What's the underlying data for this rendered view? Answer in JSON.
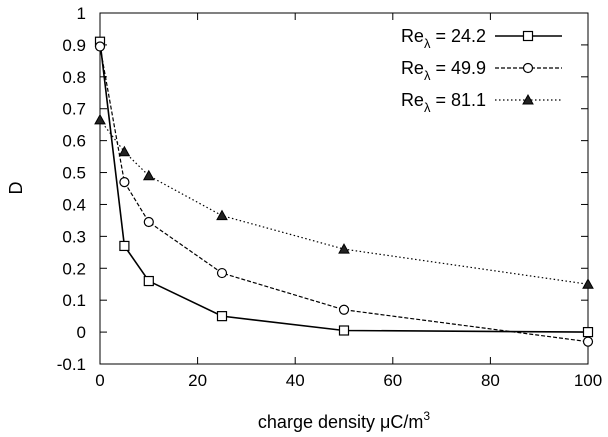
{
  "chart_data": {
    "type": "line",
    "xlabel": "charge density μC/m³",
    "xlabel_parts": {
      "base": "charge density ",
      "mu": "μ",
      "unit": "C/m",
      "exponent": "3"
    },
    "ylabel": "D",
    "xlim": [
      0,
      100
    ],
    "ylim": [
      -0.1,
      1
    ],
    "xticks": [
      "0",
      "20",
      "40",
      "60",
      "80",
      "100"
    ],
    "yticks": [
      "-0.1",
      "0",
      "0.1",
      "0.2",
      "0.3",
      "0.4",
      "0.5",
      "0.6",
      "0.7",
      "0.8",
      "0.9",
      "1"
    ],
    "grid": false,
    "legend_position": "top-right",
    "series": [
      {
        "name": "Reλ = 24.2",
        "name_base": "Re",
        "name_sub": "λ",
        "name_value": " = 24.2",
        "marker": "square",
        "line_style": "solid",
        "x": [
          0,
          5,
          10,
          25,
          50,
          100
        ],
        "y": [
          0.91,
          0.27,
          0.16,
          0.05,
          0.005,
          0.0
        ]
      },
      {
        "name": "Reλ = 49.9",
        "name_base": "Re",
        "name_sub": "λ",
        "name_value": " = 49.9",
        "marker": "circle",
        "line_style": "dashed",
        "x": [
          0,
          5,
          10,
          25,
          50,
          100
        ],
        "y": [
          0.895,
          0.47,
          0.345,
          0.185,
          0.07,
          -0.03
        ]
      },
      {
        "name": "Reλ = 81.1",
        "name_base": "Re",
        "name_sub": "λ",
        "name_value": " = 81.1",
        "marker": "triangle",
        "line_style": "dotted",
        "x": [
          0,
          5,
          10,
          25,
          50,
          100
        ],
        "y": [
          0.665,
          0.565,
          0.49,
          0.365,
          0.26,
          0.15
        ]
      }
    ]
  }
}
